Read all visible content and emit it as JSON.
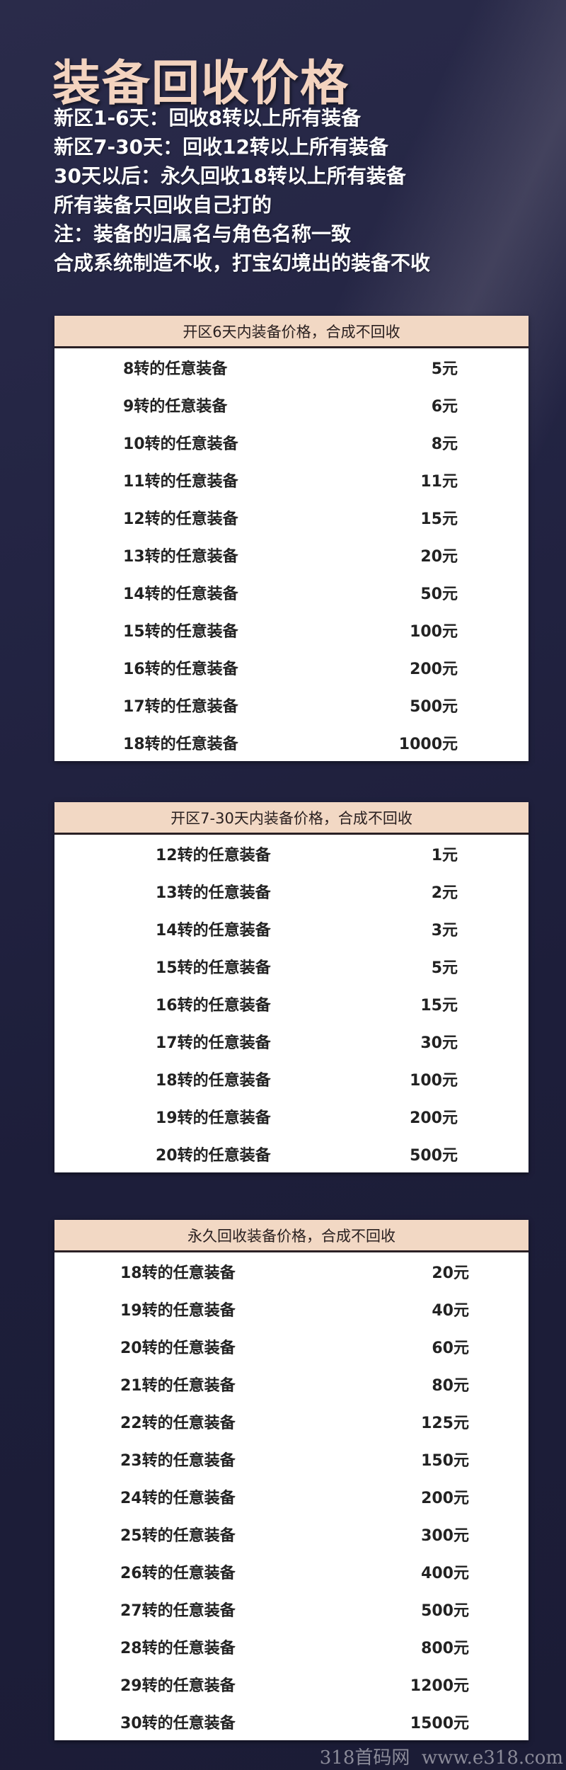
{
  "title": "装备回收价格",
  "intro": [
    "新区1-6天：回收8转以上所有装备",
    "新区7-30天：回收12转以上所有装备",
    "30天以后：永久回收18转以上所有装备",
    "所有装备只回收自己打的",
    "注：装备的归属名与角色名称一致",
    "合成系统制造不收，打宝幻境出的装备不收"
  ],
  "tables": [
    {
      "header": "开区6天内装备价格，合成不回收",
      "rows": [
        [
          "8转的任意装备",
          "5元"
        ],
        [
          "9转的任意装备",
          "6元"
        ],
        [
          "10转的任意装备",
          "8元"
        ],
        [
          "11转的任意装备",
          "11元"
        ],
        [
          "12转的任意装备",
          "15元"
        ],
        [
          "13转的任意装备",
          "20元"
        ],
        [
          "14转的任意装备",
          "50元"
        ],
        [
          "15转的任意装备",
          "100元"
        ],
        [
          "16转的任意装备",
          "200元"
        ],
        [
          "17转的任意装备",
          "500元"
        ],
        [
          "18转的任意装备",
          "1000元"
        ]
      ]
    },
    {
      "header": "开区7-30天内装备价格，合成不回收",
      "rows": [
        [
          "12转的任意装备",
          "1元"
        ],
        [
          "13转的任意装备",
          "2元"
        ],
        [
          "14转的任意装备",
          "3元"
        ],
        [
          "15转的任意装备",
          "5元"
        ],
        [
          "16转的任意装备",
          "15元"
        ],
        [
          "17转的任意装备",
          "30元"
        ],
        [
          "18转的任意装备",
          "100元"
        ],
        [
          "19转的任意装备",
          "200元"
        ],
        [
          "20转的任意装备",
          "500元"
        ]
      ]
    },
    {
      "header": "永久回收装备价格，合成不回收",
      "rows": [
        [
          "18转的任意装备",
          "20元"
        ],
        [
          "19转的任意装备",
          "40元"
        ],
        [
          "20转的任意装备",
          "60元"
        ],
        [
          "21转的任意装备",
          "80元"
        ],
        [
          "22转的任意装备",
          "125元"
        ],
        [
          "23转的任意装备",
          "150元"
        ],
        [
          "24转的任意装备",
          "200元"
        ],
        [
          "25转的任意装备",
          "300元"
        ],
        [
          "26转的任意装备",
          "400元"
        ],
        [
          "27转的任意装备",
          "500元"
        ],
        [
          "28转的任意装备",
          "800元"
        ],
        [
          "29转的任意装备",
          "1200元"
        ],
        [
          "30转的任意装备",
          "1500元"
        ]
      ]
    }
  ],
  "watermark": "318首码网  www.e318.com"
}
